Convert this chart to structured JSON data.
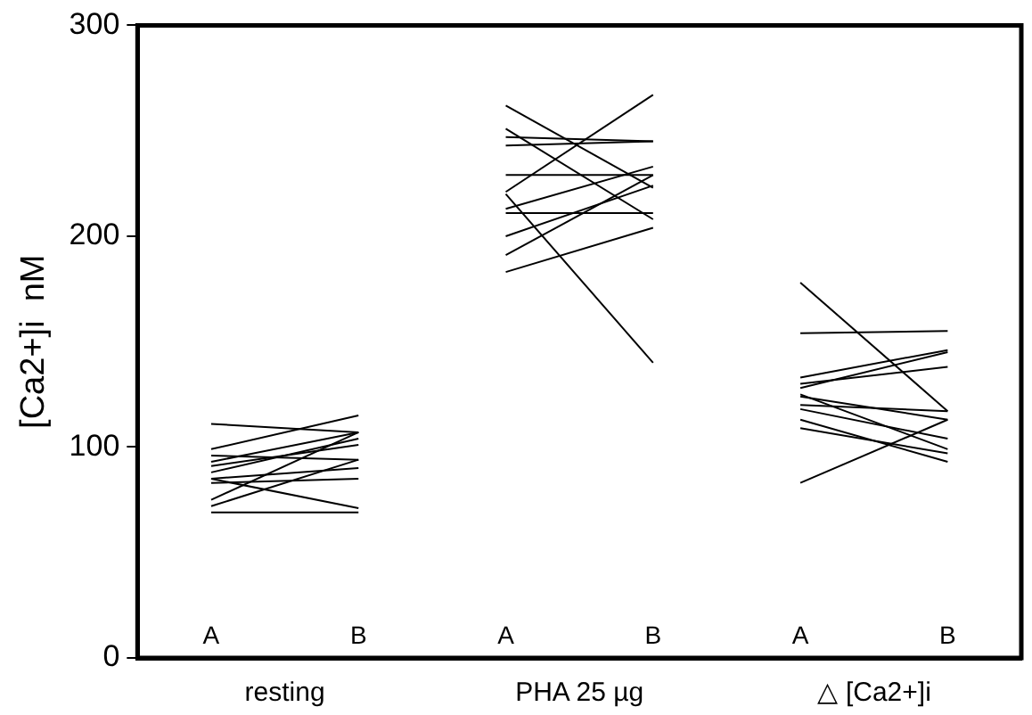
{
  "chart_data": {
    "type": "line",
    "ylabel": "[Ca2+]i  nM",
    "categories": [
      "A",
      "B",
      "A",
      "B",
      "A",
      "B"
    ],
    "ylim": [
      0,
      300
    ],
    "yticks": [
      0,
      100,
      200,
      300
    ],
    "grid": false,
    "legend": false,
    "marker": "none",
    "line_style": "solid",
    "annotations": [
      "resting",
      "PHA 25 µg",
      "△ [Ca2+]i"
    ],
    "series": [
      {
        "color": "#000000",
        "values": [
          111,
          107,
          null,
          null,
          null,
          null
        ]
      },
      {
        "color": "#000000",
        "values": [
          99,
          115,
          null,
          null,
          null,
          null
        ]
      },
      {
        "color": "#000000",
        "values": [
          96,
          94,
          null,
          null,
          null,
          null
        ]
      },
      {
        "color": "#000000",
        "values": [
          93,
          107,
          null,
          null,
          null,
          null
        ]
      },
      {
        "color": "#000000",
        "values": [
          88,
          104,
          null,
          null,
          null,
          null
        ]
      },
      {
        "color": "#000000",
        "values": [
          85,
          90,
          null,
          null,
          null,
          null
        ]
      },
      {
        "color": "#000000",
        "values": [
          85,
          71,
          null,
          null,
          null,
          null
        ]
      },
      {
        "color": "#000000",
        "values": [
          75,
          107,
          null,
          null,
          null,
          null
        ]
      },
      {
        "color": "#000000",
        "values": [
          69,
          69,
          null,
          null,
          null,
          null
        ]
      },
      {
        "color": "#000000",
        "values": [
          72,
          94,
          null,
          null,
          null,
          null
        ]
      },
      {
        "color": "#000000",
        "values": [
          91,
          101,
          null,
          null,
          null,
          null
        ]
      },
      {
        "color": "#000000",
        "values": [
          83,
          85,
          null,
          null,
          null,
          null
        ]
      },
      {
        "color": "#000000",
        "values": [
          null,
          null,
          262,
          223,
          null,
          null
        ]
      },
      {
        "color": "#000000",
        "values": [
          null,
          null,
          251,
          208,
          null,
          null
        ]
      },
      {
        "color": "#000000",
        "values": [
          null,
          null,
          247,
          245,
          null,
          null
        ]
      },
      {
        "color": "#000000",
        "values": [
          null,
          null,
          243,
          245,
          null,
          null
        ]
      },
      {
        "color": "#000000",
        "values": [
          null,
          null,
          229,
          229,
          null,
          null
        ]
      },
      {
        "color": "#000000",
        "values": [
          null,
          null,
          221,
          267,
          null,
          null
        ]
      },
      {
        "color": "#000000",
        "values": [
          null,
          null,
          213,
          233,
          null,
          null
        ]
      },
      {
        "color": "#000000",
        "values": [
          null,
          null,
          211,
          211,
          null,
          null
        ]
      },
      {
        "color": "#000000",
        "values": [
          null,
          null,
          220,
          140,
          null,
          null
        ]
      },
      {
        "color": "#000000",
        "values": [
          null,
          null,
          200,
          224,
          null,
          null
        ]
      },
      {
        "color": "#000000",
        "values": [
          null,
          null,
          191,
          229,
          null,
          null
        ]
      },
      {
        "color": "#000000",
        "values": [
          null,
          null,
          183,
          204,
          null,
          null
        ]
      },
      {
        "color": "#000000",
        "values": [
          null,
          null,
          null,
          null,
          178,
          117
        ]
      },
      {
        "color": "#000000",
        "values": [
          null,
          null,
          null,
          null,
          154,
          155
        ]
      },
      {
        "color": "#000000",
        "values": [
          null,
          null,
          null,
          null,
          133,
          146
        ]
      },
      {
        "color": "#000000",
        "values": [
          null,
          null,
          null,
          null,
          130,
          138
        ]
      },
      {
        "color": "#000000",
        "values": [
          null,
          null,
          null,
          null,
          125,
          99
        ]
      },
      {
        "color": "#000000",
        "values": [
          null,
          null,
          null,
          null,
          124,
          113
        ]
      },
      {
        "color": "#000000",
        "values": [
          null,
          null,
          null,
          null,
          120,
          117
        ]
      },
      {
        "color": "#000000",
        "values": [
          null,
          null,
          null,
          null,
          118,
          104
        ]
      },
      {
        "color": "#000000",
        "values": [
          null,
          null,
          null,
          null,
          113,
          93
        ]
      },
      {
        "color": "#000000",
        "values": [
          null,
          null,
          null,
          null,
          109,
          97
        ]
      },
      {
        "color": "#000000",
        "values": [
          null,
          null,
          null,
          null,
          83,
          113
        ]
      },
      {
        "color": "#000000",
        "values": [
          null,
          null,
          null,
          null,
          128,
          145
        ]
      }
    ]
  }
}
